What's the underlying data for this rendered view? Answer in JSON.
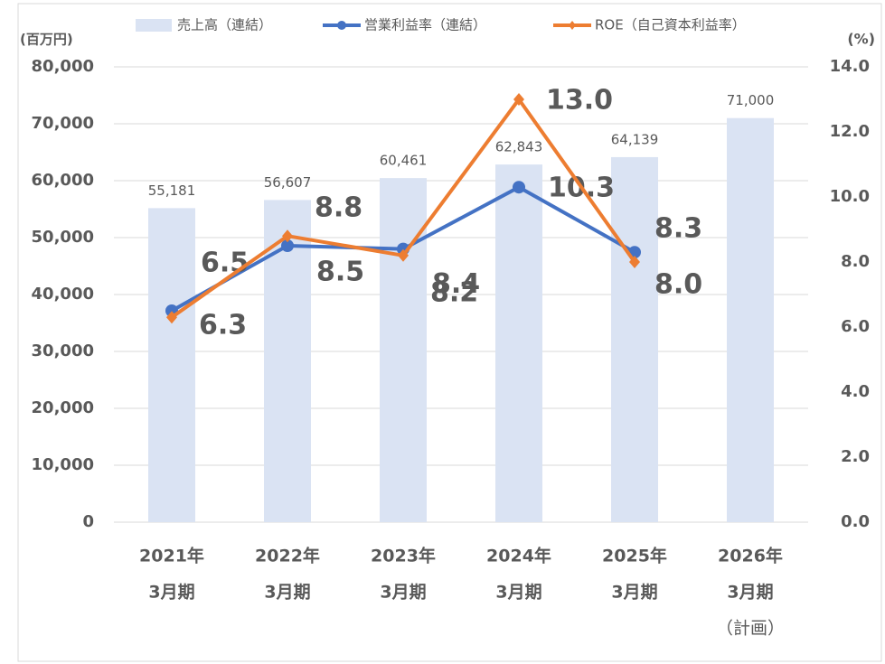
{
  "chart_data": {
    "type": "bar-line",
    "categories": [
      [
        "2021年",
        "3月期"
      ],
      [
        "2022年",
        "3月期"
      ],
      [
        "2023年",
        "3月期"
      ],
      [
        "2024年",
        "3月期"
      ],
      [
        "2025年",
        "3月期"
      ],
      [
        "2026年",
        "3月期",
        "（計画）"
      ]
    ],
    "ylabel": "(百万円)",
    "y2label": "(%)",
    "ylim": [
      0,
      80000
    ],
    "yticks": [
      0,
      {
        "value": 10000,
        "label": "10,000"
      },
      {
        "value": 20000,
        "label": "20,000"
      },
      {
        "value": 30000,
        "label": "30,000"
      },
      {
        "value": 40000,
        "label": "40,000"
      },
      {
        "value": 50000,
        "label": "50,000"
      },
      {
        "value": 60000,
        "label": "60,000"
      },
      {
        "value": 70000,
        "label": "70,000"
      },
      {
        "value": 80000,
        "label": "80,000"
      }
    ],
    "y2lim": [
      0,
      14
    ],
    "y2ticks": [
      {
        "value": 0,
        "label": "0.0"
      },
      {
        "value": 2,
        "label": "2.0"
      },
      {
        "value": 4,
        "label": "4.0"
      },
      {
        "value": 6,
        "label": "6.0"
      },
      {
        "value": 8,
        "label": "8.0"
      },
      {
        "value": 10,
        "label": "10.0"
      },
      {
        "value": 12,
        "label": "12.0"
      },
      {
        "value": 14,
        "label": "14.0"
      }
    ],
    "grid": true,
    "legend": "top",
    "series": [
      {
        "name": "売上高（連結）",
        "type": "bar",
        "color": "#dae3f3",
        "label_color": "#595959",
        "values": [
          55181,
          56607,
          60461,
          62843,
          64139,
          71000
        ],
        "value_labels": [
          "55,181",
          "56,607",
          "60,461",
          "62,843",
          "64,139",
          "71,000"
        ]
      },
      {
        "name": "営業利益率（連結）",
        "type": "line",
        "axis": "y2",
        "color": "#4472c4",
        "label_color": "#2f5597",
        "marker": "circle",
        "values": [
          6.5,
          8.5,
          8.4,
          10.3,
          8.3,
          null
        ],
        "value_labels": [
          "6.5",
          "8.5",
          "8.4",
          "10.3",
          "8.3",
          null
        ]
      },
      {
        "name": "ROE（自己資本利益率）",
        "type": "line",
        "axis": "y2",
        "color": "#ed7d31",
        "label_color": "#843c0c",
        "marker": "diamond",
        "values": [
          6.3,
          8.8,
          8.2,
          13.0,
          8.0,
          null
        ],
        "value_labels": [
          "6.3",
          "8.8",
          "8.2",
          "13.0",
          "8.0",
          null
        ]
      }
    ]
  }
}
